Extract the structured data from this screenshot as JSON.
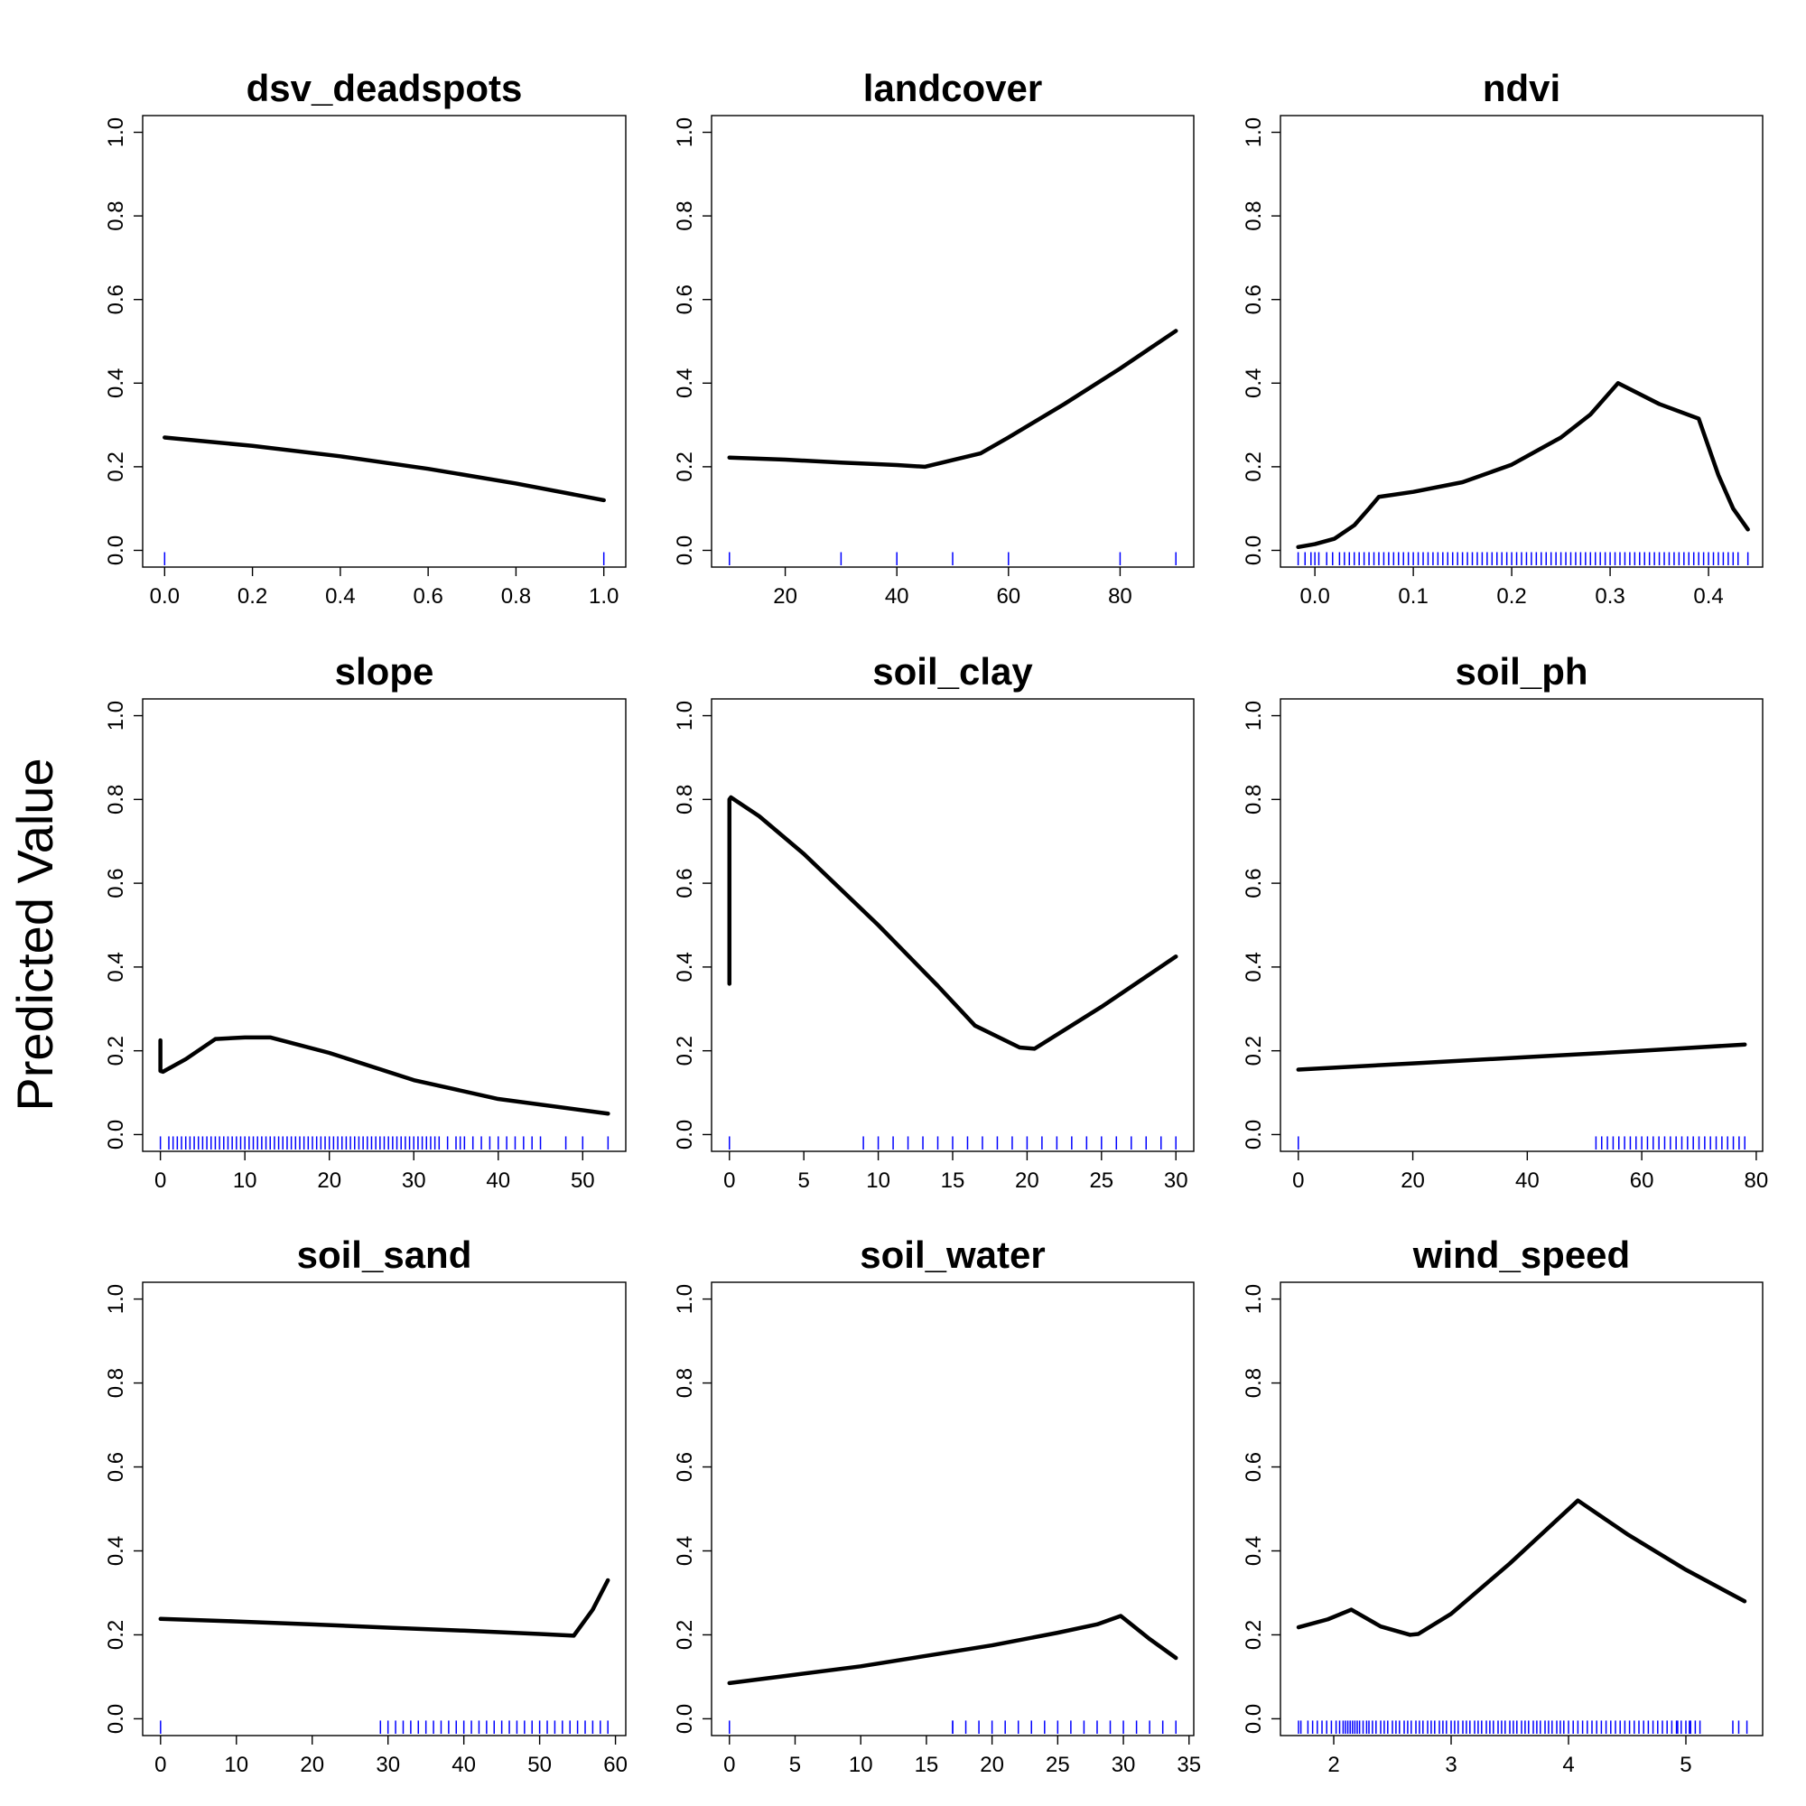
{
  "figure": {
    "ylabel": "Predicted Value"
  },
  "colors": {
    "curve": "#000000",
    "rug": "#0000ff",
    "rug_highlight": "#ff0000"
  },
  "chart_data": [
    {
      "type": "line",
      "title": "dsv_deadspots",
      "xlim": [
        -0.05,
        1.05
      ],
      "ylim": [
        -0.04,
        1.04
      ],
      "xticks": [
        0.0,
        0.2,
        0.4,
        0.6,
        0.8,
        1.0
      ],
      "xtick_labels": [
        "0.0",
        "0.2",
        "0.4",
        "0.6",
        "0.8",
        "1.0"
      ],
      "yticks": [
        0.0,
        0.2,
        0.4,
        0.6,
        0.8,
        1.0
      ],
      "ytick_labels": [
        "0.0",
        "0.2",
        "0.4",
        "0.6",
        "0.8",
        "1.0"
      ],
      "x": [
        0.0,
        0.2,
        0.4,
        0.6,
        0.8,
        1.0
      ],
      "y": [
        0.27,
        0.25,
        0.225,
        0.195,
        0.16,
        0.12
      ],
      "rug": [
        0.0,
        1.0
      ]
    },
    {
      "type": "line",
      "title": "landcover",
      "xlim": [
        6.8,
        93.2
      ],
      "ylim": [
        -0.04,
        1.04
      ],
      "xticks": [
        20,
        40,
        60,
        80
      ],
      "xtick_labels": [
        "20",
        "40",
        "60",
        "80"
      ],
      "yticks": [
        0.0,
        0.2,
        0.4,
        0.6,
        0.8,
        1.0
      ],
      "ytick_labels": [
        "0.0",
        "0.2",
        "0.4",
        "0.6",
        "0.8",
        "1.0"
      ],
      "x": [
        10,
        20,
        30,
        40,
        45,
        55,
        60,
        70,
        80,
        90
      ],
      "y": [
        0.222,
        0.217,
        0.21,
        0.204,
        0.2,
        0.232,
        0.27,
        0.35,
        0.435,
        0.525
      ],
      "rug": [
        10,
        30,
        40,
        50,
        60,
        80,
        90
      ]
    },
    {
      "type": "line",
      "title": "ndvi",
      "xlim": [
        -0.035,
        0.455
      ],
      "ylim": [
        -0.04,
        1.04
      ],
      "xticks": [
        0.0,
        0.1,
        0.2,
        0.3,
        0.4
      ],
      "xtick_labels": [
        "0.0",
        "0.1",
        "0.2",
        "0.3",
        "0.4"
      ],
      "yticks": [
        0.0,
        0.2,
        0.4,
        0.6,
        0.8,
        1.0
      ],
      "ytick_labels": [
        "0.0",
        "0.2",
        "0.4",
        "0.6",
        "0.8",
        "1.0"
      ],
      "x": [
        -0.017,
        0.0,
        0.02,
        0.04,
        0.055,
        0.065,
        0.1,
        0.15,
        0.2,
        0.25,
        0.28,
        0.308,
        0.35,
        0.39,
        0.41,
        0.425,
        0.44
      ],
      "y": [
        0.008,
        0.015,
        0.028,
        0.06,
        0.1,
        0.128,
        0.14,
        0.163,
        0.205,
        0.27,
        0.325,
        0.4,
        0.35,
        0.315,
        0.18,
        0.1,
        0.05
      ],
      "rug": [
        -0.017,
        -0.01,
        -0.004,
        0.0,
        0.004,
        0.012,
        0.018,
        0.025,
        0.03,
        0.035,
        0.04,
        0.045,
        0.05,
        0.055,
        0.06,
        0.065,
        0.07,
        0.075,
        0.08,
        0.085,
        0.09,
        0.095,
        0.1,
        0.105,
        0.11,
        0.115,
        0.12,
        0.125,
        0.13,
        0.135,
        0.14,
        0.145,
        0.15,
        0.155,
        0.16,
        0.165,
        0.17,
        0.175,
        0.18,
        0.185,
        0.19,
        0.195,
        0.2,
        0.205,
        0.21,
        0.215,
        0.22,
        0.225,
        0.23,
        0.235,
        0.24,
        0.245,
        0.25,
        0.255,
        0.26,
        0.265,
        0.27,
        0.275,
        0.28,
        0.285,
        0.29,
        0.295,
        0.3,
        0.305,
        0.31,
        0.315,
        0.32,
        0.325,
        0.33,
        0.335,
        0.34,
        0.345,
        0.35,
        0.355,
        0.36,
        0.365,
        0.37,
        0.375,
        0.38,
        0.385,
        0.39,
        0.395,
        0.4,
        0.405,
        0.41,
        0.415,
        0.42,
        0.425,
        0.43,
        0.44
      ]
    },
    {
      "type": "line",
      "title": "slope",
      "xlim": [
        -2.1,
        55.1
      ],
      "ylim": [
        -0.04,
        1.04
      ],
      "xticks": [
        0,
        10,
        20,
        30,
        40,
        50
      ],
      "xtick_labels": [
        "0",
        "10",
        "20",
        "30",
        "40",
        "50"
      ],
      "yticks": [
        0.0,
        0.2,
        0.4,
        0.6,
        0.8,
        1.0
      ],
      "ytick_labels": [
        "0.0",
        "0.2",
        "0.4",
        "0.6",
        "0.8",
        "1.0"
      ],
      "x": [
        0.0,
        0.0,
        0.3,
        3,
        6.5,
        10,
        13,
        20,
        30,
        40,
        53
      ],
      "y": [
        0.225,
        0.152,
        0.15,
        0.18,
        0.228,
        0.232,
        0.232,
        0.195,
        0.13,
        0.085,
        0.05
      ],
      "rug": [
        0,
        1,
        1.5,
        2,
        2.5,
        3,
        3.5,
        4,
        4.5,
        5,
        5.5,
        6,
        6.5,
        7,
        7.5,
        8,
        8.5,
        9,
        9.5,
        10,
        10.5,
        11,
        11.5,
        12,
        12.5,
        13,
        13.5,
        14,
        14.5,
        15,
        15.5,
        16,
        16.5,
        17,
        17.5,
        18,
        18.5,
        19,
        19.5,
        20,
        20.5,
        21,
        21.5,
        22,
        22.5,
        23,
        23.5,
        24,
        24.5,
        25,
        25.5,
        26,
        26.5,
        27,
        27.5,
        28,
        28.5,
        29,
        29.5,
        30,
        30.5,
        31,
        31.5,
        32,
        32.5,
        33,
        34,
        35,
        35.5,
        36,
        37,
        38,
        39,
        40,
        41,
        42,
        43,
        44,
        45,
        48,
        50,
        53
      ]
    },
    {
      "type": "line",
      "title": "soil_clay",
      "xlim": [
        -1.2,
        31.2
      ],
      "ylim": [
        -0.04,
        1.04
      ],
      "xticks": [
        0,
        5,
        10,
        15,
        20,
        25,
        30
      ],
      "xtick_labels": [
        "0",
        "5",
        "10",
        "15",
        "20",
        "25",
        "30"
      ],
      "yticks": [
        0.0,
        0.2,
        0.4,
        0.6,
        0.8,
        1.0
      ],
      "ytick_labels": [
        "0.0",
        "0.2",
        "0.4",
        "0.6",
        "0.8",
        "1.0"
      ],
      "x": [
        0.0,
        0.0,
        0.1,
        2,
        5,
        10,
        14,
        16.5,
        19.5,
        20.5,
        25,
        30
      ],
      "y": [
        0.36,
        0.8,
        0.805,
        0.76,
        0.67,
        0.5,
        0.355,
        0.26,
        0.208,
        0.205,
        0.305,
        0.425
      ],
      "rug": [
        0,
        9,
        10,
        11,
        12,
        13,
        14,
        15,
        16,
        17,
        18,
        19,
        20,
        21,
        22,
        23,
        24,
        25,
        26,
        27,
        28,
        29,
        30
      ]
    },
    {
      "type": "line",
      "title": "soil_ph",
      "xlim": [
        -3.12,
        81.12
      ],
      "ylim": [
        -0.04,
        1.04
      ],
      "xticks": [
        0,
        20,
        40,
        60,
        80
      ],
      "xtick_labels": [
        "0",
        "20",
        "40",
        "60",
        "80"
      ],
      "yticks": [
        0.0,
        0.2,
        0.4,
        0.6,
        0.8,
        1.0
      ],
      "ytick_labels": [
        "0.0",
        "0.2",
        "0.4",
        "0.6",
        "0.8",
        "1.0"
      ],
      "x": [
        0,
        20,
        40,
        60,
        78
      ],
      "y": [
        0.155,
        0.17,
        0.185,
        0.2,
        0.215
      ],
      "rug": [
        0,
        52,
        53,
        54,
        55,
        56,
        57,
        58,
        59,
        60,
        61,
        62,
        63,
        64,
        65,
        66,
        67,
        68,
        69,
        70,
        71,
        72,
        73,
        74,
        75,
        76,
        77,
        78
      ]
    },
    {
      "type": "line",
      "title": "soil_sand",
      "xlim": [
        -2.36,
        61.36
      ],
      "ylim": [
        -0.04,
        1.04
      ],
      "xticks": [
        0,
        10,
        20,
        30,
        40,
        50,
        60
      ],
      "xtick_labels": [
        "0",
        "10",
        "20",
        "30",
        "40",
        "50",
        "60"
      ],
      "yticks": [
        0.0,
        0.2,
        0.4,
        0.6,
        0.8,
        1.0
      ],
      "ytick_labels": [
        "0.0",
        "0.2",
        "0.4",
        "0.6",
        "0.8",
        "1.0"
      ],
      "x": [
        0,
        10,
        20,
        30,
        40,
        50,
        54.5,
        57,
        59
      ],
      "y": [
        0.238,
        0.232,
        0.225,
        0.217,
        0.21,
        0.202,
        0.198,
        0.26,
        0.33
      ],
      "rug": [
        0,
        29,
        30,
        31,
        32,
        33,
        34,
        35,
        36,
        37,
        38,
        39,
        40,
        41,
        42,
        43,
        44,
        45,
        46,
        47,
        48,
        49,
        50,
        51,
        52,
        53,
        54,
        55,
        56,
        57,
        58,
        59
      ]
    },
    {
      "type": "line",
      "title": "soil_water",
      "xlim": [
        -1.36,
        35.36
      ],
      "ylim": [
        -0.04,
        1.04
      ],
      "xticks": [
        0,
        5,
        10,
        15,
        20,
        25,
        30,
        35
      ],
      "xtick_labels": [
        "0",
        "5",
        "10",
        "15",
        "20",
        "25",
        "30",
        "35"
      ],
      "yticks": [
        0.0,
        0.2,
        0.4,
        0.6,
        0.8,
        1.0
      ],
      "ytick_labels": [
        "0.0",
        "0.2",
        "0.4",
        "0.6",
        "0.8",
        "1.0"
      ],
      "x": [
        0,
        5,
        10,
        15,
        20,
        25,
        28,
        29.8,
        32,
        34
      ],
      "y": [
        0.085,
        0.105,
        0.125,
        0.15,
        0.175,
        0.205,
        0.225,
        0.245,
        0.19,
        0.145
      ],
      "rug": [
        0,
        17,
        18,
        19,
        20,
        21,
        22,
        23,
        24,
        25,
        26,
        27,
        28,
        29,
        30,
        31,
        32,
        33,
        34
      ],
      "rug_highlight": [
        17
      ]
    },
    {
      "type": "line",
      "title": "wind_speed",
      "xlim": [
        1.546,
        5.654
      ],
      "ylim": [
        -0.04,
        1.04
      ],
      "xticks": [
        2,
        3,
        4,
        5
      ],
      "xtick_labels": [
        "2",
        "3",
        "4",
        "5"
      ],
      "yticks": [
        0.0,
        0.2,
        0.4,
        0.6,
        0.8,
        1.0
      ],
      "ytick_labels": [
        "0.0",
        "0.2",
        "0.4",
        "0.6",
        "0.8",
        "1.0"
      ],
      "x": [
        1.7,
        1.95,
        2.15,
        2.4,
        2.65,
        2.72,
        3.0,
        3.5,
        4.08,
        4.5,
        5.0,
        5.5
      ],
      "y": [
        0.218,
        0.237,
        0.26,
        0.22,
        0.2,
        0.202,
        0.25,
        0.37,
        0.52,
        0.44,
        0.355,
        0.28
      ],
      "rug": [
        1.7,
        1.72,
        1.78,
        1.82,
        1.86,
        1.9,
        1.94,
        1.98,
        2.02,
        2.05,
        2.08,
        2.1,
        2.12,
        2.14,
        2.16,
        2.18,
        2.2,
        2.22,
        2.25,
        2.28,
        2.3,
        2.33,
        2.36,
        2.4,
        2.43,
        2.46,
        2.5,
        2.53,
        2.56,
        2.6,
        2.63,
        2.66,
        2.7,
        2.73,
        2.76,
        2.8,
        2.83,
        2.86,
        2.9,
        2.93,
        2.96,
        3.0,
        3.03,
        3.06,
        3.1,
        3.13,
        3.16,
        3.2,
        3.23,
        3.26,
        3.3,
        3.33,
        3.36,
        3.4,
        3.43,
        3.46,
        3.5,
        3.53,
        3.56,
        3.6,
        3.63,
        3.66,
        3.7,
        3.73,
        3.76,
        3.8,
        3.83,
        3.86,
        3.9,
        3.93,
        3.96,
        4.0,
        4.04,
        4.08,
        4.12,
        4.16,
        4.2,
        4.24,
        4.28,
        4.32,
        4.36,
        4.4,
        4.44,
        4.48,
        4.52,
        4.56,
        4.6,
        4.64,
        4.68,
        4.72,
        4.76,
        4.8,
        4.84,
        4.88,
        4.92,
        4.96,
        5.0,
        5.04,
        5.08,
        5.12,
        5.4,
        5.45,
        5.52
      ],
      "rug_highlight": [
        4.93,
        5.03
      ]
    }
  ]
}
